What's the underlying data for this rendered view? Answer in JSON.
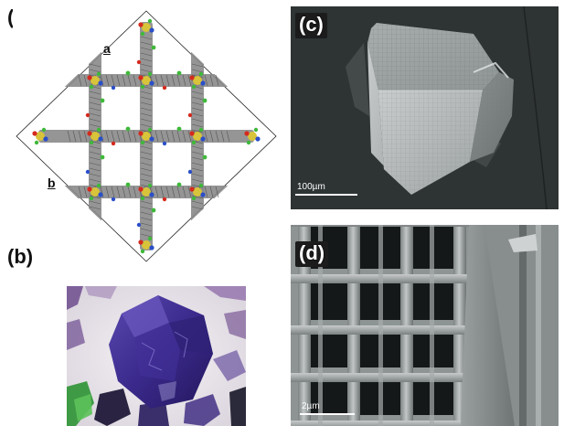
{
  "panels": {
    "a": {
      "label": "(a)",
      "axis_a": "a",
      "axis_b": "b"
    },
    "b": {
      "label": "(b)"
    },
    "c": {
      "label": "(c)",
      "scale_bar": "100µm"
    },
    "d": {
      "label": "(d)",
      "scale_bar": "2µm"
    }
  },
  "colors": {
    "framework_gray": "#8a8a8a",
    "node_yellow": "#d8c43a",
    "atom_red": "#d42a1e",
    "atom_blue": "#2b4fc9",
    "atom_green": "#3fb83a",
    "crystal_purple": "#3b2a8c",
    "sem_background": "#2e3333",
    "sem_crystal": "#b9bdbd"
  }
}
